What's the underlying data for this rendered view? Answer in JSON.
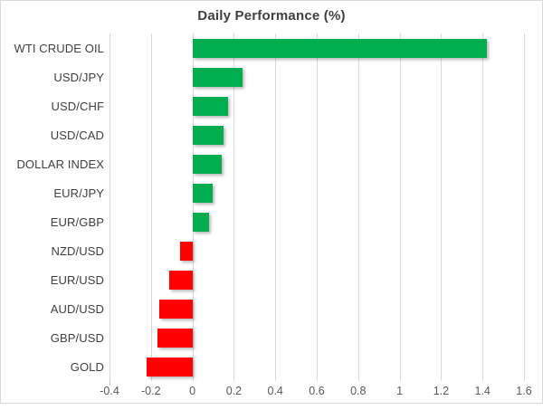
{
  "chart_data": {
    "type": "bar",
    "orientation": "horizontal",
    "title": "Daily Performance (%)",
    "categories": [
      "WTI CRUDE OIL",
      "USD/JPY",
      "USD/CHF",
      "USD/CAD",
      "DOLLAR INDEX",
      "EUR/JPY",
      "EUR/GBP",
      "NZD/USD",
      "EUR/USD",
      "AUD/USD",
      "GBP/USD",
      "GOLD"
    ],
    "values": [
      1.42,
      0.24,
      0.17,
      0.15,
      0.14,
      0.1,
      0.08,
      -0.06,
      -0.11,
      -0.16,
      -0.17,
      -0.22
    ],
    "xlim": [
      -0.4,
      1.6
    ],
    "xticks": [
      -0.4,
      -0.2,
      0,
      0.2,
      0.4,
      0.6,
      0.8,
      1,
      1.2,
      1.4,
      1.6
    ],
    "xtick_labels": [
      "-0.4",
      "-0.2",
      "0",
      "0.2",
      "0.4",
      "0.6",
      "0.8",
      "1",
      "1.2",
      "1.4",
      "1.6"
    ],
    "grid": true,
    "legend": false,
    "xlabel": "",
    "ylabel": "",
    "colors": {
      "positive_bar": "#00AE50",
      "negative_bar": "#FF0000",
      "gridline": "#D9D9D9",
      "border": "#D9D9D9",
      "title_text": "#404040",
      "category_text": "#404040",
      "tick_text": "#595959",
      "axis_tick": "#BFBFBF",
      "background": "#FFFFFF"
    }
  }
}
